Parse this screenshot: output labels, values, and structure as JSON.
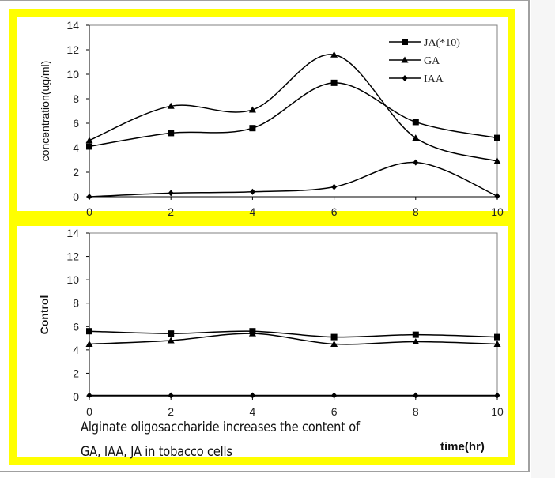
{
  "caption": {
    "line1": "Alginate oligosaccharide increases the content of",
    "line2": "GA, IAA, JA in tobacco cells"
  },
  "colors": {
    "frame": "#ffff00",
    "lines": "#000000"
  },
  "chart_data": [
    {
      "type": "line",
      "ylabel": "concentration(ug/ml)",
      "xlabel": "",
      "x": [
        0,
        2,
        4,
        6,
        8,
        10
      ],
      "xticks": [
        "0",
        "2",
        "4",
        "6",
        "8",
        "10"
      ],
      "yticks": [
        "0",
        "2",
        "4",
        "6",
        "8",
        "10",
        "12",
        "14"
      ],
      "xlim": [
        0,
        10
      ],
      "ylim": [
        0,
        14
      ],
      "smoothed": true,
      "legend": "top-right",
      "series": [
        {
          "name": "JA(*10)",
          "marker": "square",
          "values": [
            4.1,
            5.2,
            5.6,
            9.3,
            6.1,
            4.8
          ]
        },
        {
          "name": "GA",
          "marker": "triangle",
          "values": [
            4.6,
            7.4,
            7.1,
            11.6,
            4.8,
            2.9
          ]
        },
        {
          "name": "IAA",
          "marker": "diamond",
          "values": [
            0.0,
            0.3,
            0.4,
            0.8,
            2.8,
            0.05
          ]
        }
      ]
    },
    {
      "type": "line",
      "ylabel": "Control",
      "xlabel": "time(hr)",
      "x": [
        0,
        2,
        4,
        6,
        8,
        10
      ],
      "xticks": [
        "0",
        "2",
        "4",
        "6",
        "8",
        "10"
      ],
      "yticks": [
        "0",
        "2",
        "4",
        "6",
        "8",
        "10",
        "12",
        "14"
      ],
      "xlim": [
        0,
        10
      ],
      "ylim": [
        0,
        14
      ],
      "smoothed": true,
      "series": [
        {
          "marker": "square",
          "values": [
            5.6,
            5.4,
            5.6,
            5.1,
            5.3,
            5.1
          ]
        },
        {
          "marker": "triangle",
          "values": [
            4.5,
            4.8,
            5.4,
            4.5,
            4.7,
            4.5
          ]
        },
        {
          "marker": "diamond",
          "values": [
            0.1,
            0.1,
            0.1,
            0.1,
            0.1,
            0.1
          ]
        }
      ]
    }
  ]
}
